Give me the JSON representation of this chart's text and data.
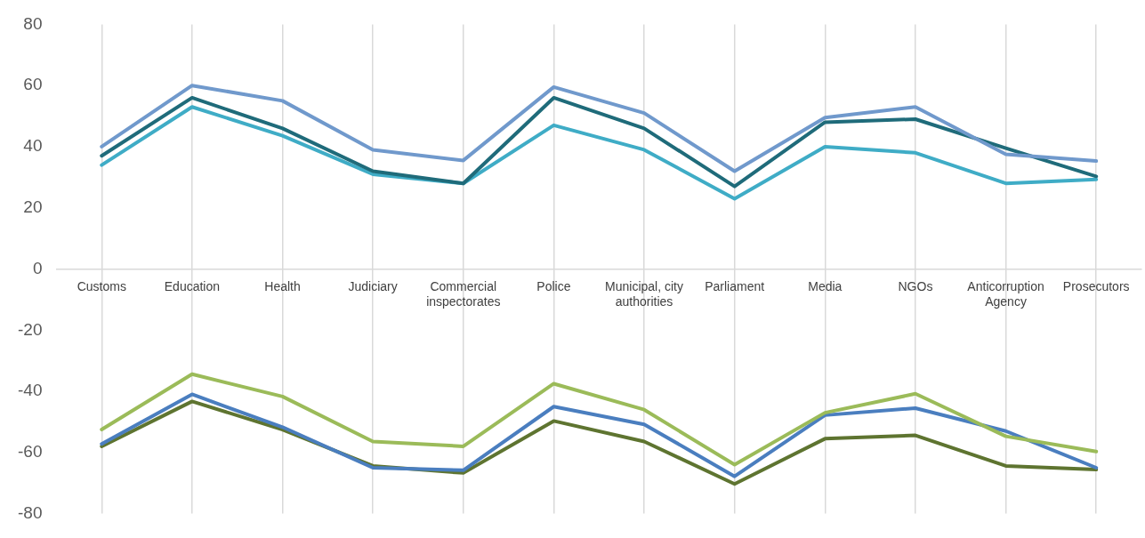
{
  "chart_data": {
    "type": "line",
    "categories": [
      "Customs",
      "Education",
      "Health",
      "Judiciary",
      "Commercial inspectorates",
      "Police",
      "Municipal, city authorities",
      "Parliament",
      "Media",
      "NGOs",
      "Anticorruption Agency",
      "Prosecutors"
    ],
    "series": [
      {
        "color": "#7099cc",
        "values": [
          40,
          60,
          55,
          39,
          35.5,
          59.5,
          51,
          32,
          49.5,
          53,
          37.5,
          35.3
        ]
      },
      {
        "color": "#1f6b7a",
        "values": [
          37,
          56,
          46,
          32,
          28,
          56,
          46,
          27,
          48,
          49,
          39.5,
          30.3
        ]
      },
      {
        "color": "#3facc6",
        "values": [
          34,
          53,
          43.6,
          31,
          28,
          47,
          39,
          23,
          40,
          38,
          28,
          29.3
        ]
      },
      {
        "color": "#9bbb59",
        "values": [
          -52.5,
          -34.4,
          -41.7,
          -56.4,
          -58,
          -37.5,
          -46,
          -64,
          -47,
          -40.8,
          -54.7,
          -59.7
        ]
      },
      {
        "color": "#4a7ebf",
        "values": [
          -57.2,
          -41,
          -51.7,
          -65,
          -65.8,
          -45,
          -50.8,
          -67.8,
          -47.8,
          -45.5,
          -53,
          -65
        ]
      },
      {
        "color": "#5e7430",
        "values": [
          -58,
          -43.3,
          -52.5,
          -64.4,
          -66.7,
          -49.7,
          -56.4,
          -70.3,
          -55.5,
          -54.4,
          -64.4,
          -65.6
        ]
      }
    ],
    "ylim": [
      -80,
      80
    ],
    "yticks": [
      -80,
      -60,
      -40,
      -20,
      0,
      20,
      40,
      60,
      80
    ],
    "grid": "x",
    "legend": false,
    "marker": "none",
    "line_style": "solid"
  }
}
